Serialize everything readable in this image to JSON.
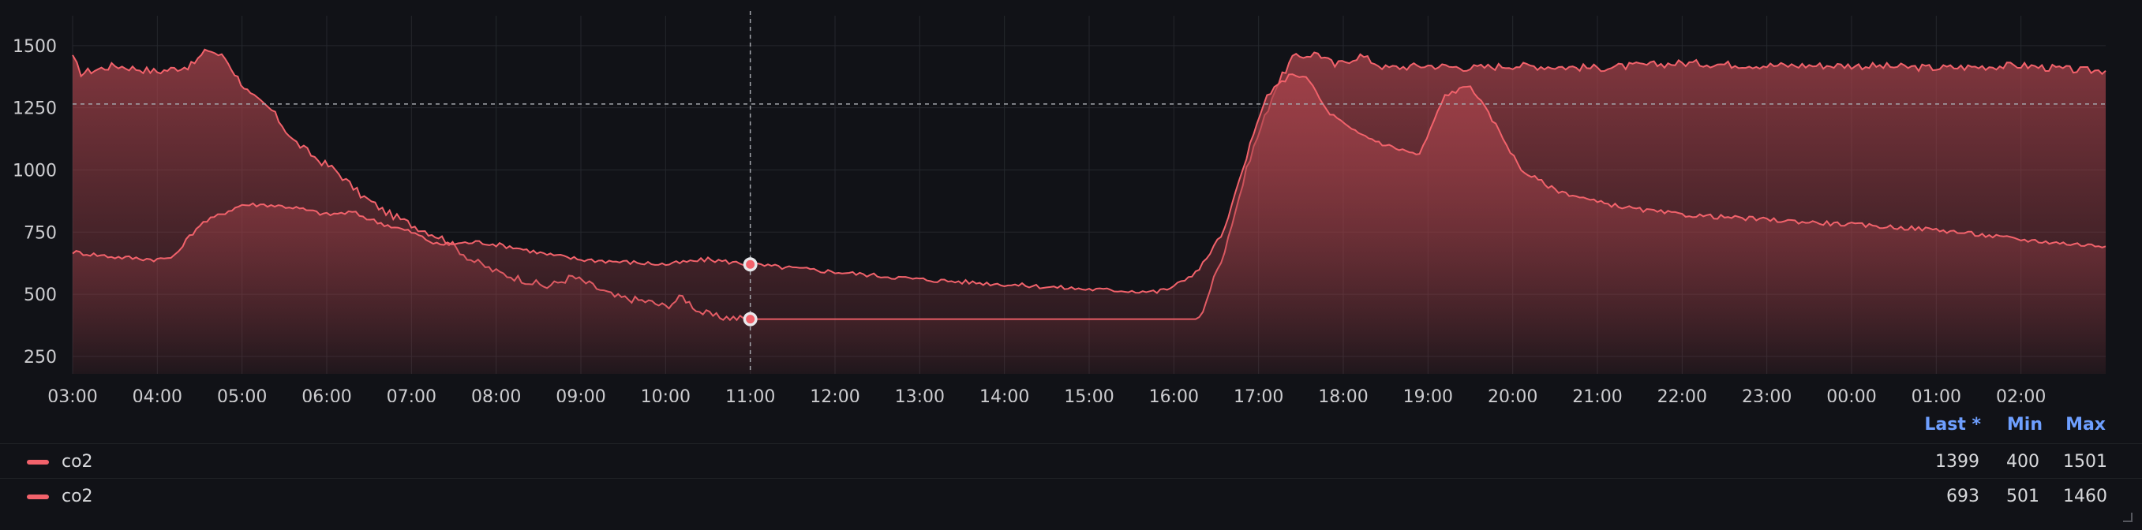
{
  "colors": {
    "series": "#f2626b",
    "fill_top": "#a8434b",
    "background": "#111217",
    "grid": "#25272d",
    "legend_header": "#6e9fff"
  },
  "chart_data": {
    "type": "area",
    "x_ticks": [
      "03:00",
      "04:00",
      "05:00",
      "06:00",
      "07:00",
      "08:00",
      "09:00",
      "10:00",
      "11:00",
      "12:00",
      "13:00",
      "14:00",
      "15:00",
      "16:00",
      "17:00",
      "18:00",
      "19:00",
      "20:00",
      "21:00",
      "22:00",
      "23:00",
      "00:00",
      "01:00",
      "02:00"
    ],
    "y_ticks": [
      250,
      500,
      750,
      1000,
      1250,
      1500
    ],
    "ylim": [
      180,
      1620
    ],
    "x_range_hours": [
      0,
      24
    ],
    "crosshair": {
      "x_hour": 8.0,
      "y_value": 1265
    },
    "series": [
      {
        "name": "co2",
        "points": [
          [
            0,
            1450
          ],
          [
            0.1,
            1390
          ],
          [
            0.5,
            1420
          ],
          [
            1.0,
            1395
          ],
          [
            1.4,
            1420
          ],
          [
            1.6,
            1485
          ],
          [
            1.8,
            1450
          ],
          [
            1.95,
            1370
          ],
          [
            2.1,
            1300
          ],
          [
            2.35,
            1240
          ],
          [
            2.6,
            1120
          ],
          [
            2.9,
            1040
          ],
          [
            3.1,
            1000
          ],
          [
            3.4,
            900
          ],
          [
            3.7,
            830
          ],
          [
            4.0,
            780
          ],
          [
            4.4,
            720
          ],
          [
            4.7,
            640
          ],
          [
            5.0,
            590
          ],
          [
            5.3,
            560
          ],
          [
            5.6,
            530
          ],
          [
            5.9,
            570
          ],
          [
            6.1,
            540
          ],
          [
            6.4,
            490
          ],
          [
            6.8,
            470
          ],
          [
            7.0,
            450
          ],
          [
            7.2,
            490
          ],
          [
            7.4,
            430
          ],
          [
            7.6,
            410
          ],
          [
            8.0,
            400
          ],
          [
            9.0,
            400
          ],
          [
            10.0,
            400
          ],
          [
            11.0,
            400
          ],
          [
            12.0,
            400
          ],
          [
            13.0,
            400
          ],
          [
            13.3,
            400
          ],
          [
            13.6,
            680
          ],
          [
            13.9,
            1050
          ],
          [
            14.2,
            1330
          ],
          [
            14.4,
            1450
          ],
          [
            14.7,
            1470
          ],
          [
            14.9,
            1420
          ],
          [
            15.2,
            1460
          ],
          [
            15.5,
            1410
          ],
          [
            16.0,
            1420
          ],
          [
            16.5,
            1410
          ],
          [
            17.0,
            1420
          ],
          [
            18.0,
            1410
          ],
          [
            19.0,
            1430
          ],
          [
            20.0,
            1420
          ],
          [
            21.0,
            1420
          ],
          [
            22.0,
            1410
          ],
          [
            23.0,
            1420
          ],
          [
            23.7,
            1400
          ],
          [
            24.0,
            1399
          ]
        ]
      },
      {
        "name": "co2",
        "points": [
          [
            0,
            670
          ],
          [
            0.5,
            650
          ],
          [
            1.0,
            640
          ],
          [
            1.2,
            650
          ],
          [
            1.3,
            700
          ],
          [
            1.5,
            780
          ],
          [
            1.8,
            830
          ],
          [
            2.0,
            860
          ],
          [
            2.3,
            860
          ],
          [
            2.6,
            850
          ],
          [
            3.0,
            820
          ],
          [
            3.3,
            830
          ],
          [
            3.6,
            790
          ],
          [
            4.0,
            750
          ],
          [
            4.3,
            700
          ],
          [
            4.8,
            710
          ],
          [
            5.2,
            690
          ],
          [
            5.6,
            660
          ],
          [
            6.0,
            640
          ],
          [
            6.5,
            630
          ],
          [
            7.0,
            620
          ],
          [
            7.5,
            640
          ],
          [
            8.0,
            620
          ],
          [
            9.0,
            590
          ],
          [
            10.0,
            560
          ],
          [
            11.0,
            540
          ],
          [
            12.0,
            520
          ],
          [
            12.8,
            510
          ],
          [
            13.0,
            530
          ],
          [
            13.3,
            600
          ],
          [
            13.6,
            760
          ],
          [
            13.9,
            1100
          ],
          [
            14.1,
            1300
          ],
          [
            14.4,
            1390
          ],
          [
            14.6,
            1360
          ],
          [
            14.8,
            1240
          ],
          [
            15.1,
            1160
          ],
          [
            15.5,
            1100
          ],
          [
            15.9,
            1060
          ],
          [
            16.2,
            1300
          ],
          [
            16.5,
            1340
          ],
          [
            16.8,
            1180
          ],
          [
            17.1,
            1000
          ],
          [
            17.5,
            920
          ],
          [
            18.0,
            870
          ],
          [
            18.5,
            840
          ],
          [
            19.0,
            820
          ],
          [
            20.0,
            800
          ],
          [
            21.0,
            780
          ],
          [
            22.0,
            760
          ],
          [
            23.0,
            720
          ],
          [
            23.5,
            705
          ],
          [
            24.0,
            693
          ]
        ]
      }
    ]
  },
  "legend": {
    "header": {
      "last": "Last *",
      "min": "Min",
      "max": "Max"
    },
    "rows": [
      {
        "name": "co2",
        "last": "1399",
        "min": "400",
        "max": "1501"
      },
      {
        "name": "co2",
        "last": "693",
        "min": "501",
        "max": "1460"
      }
    ]
  }
}
